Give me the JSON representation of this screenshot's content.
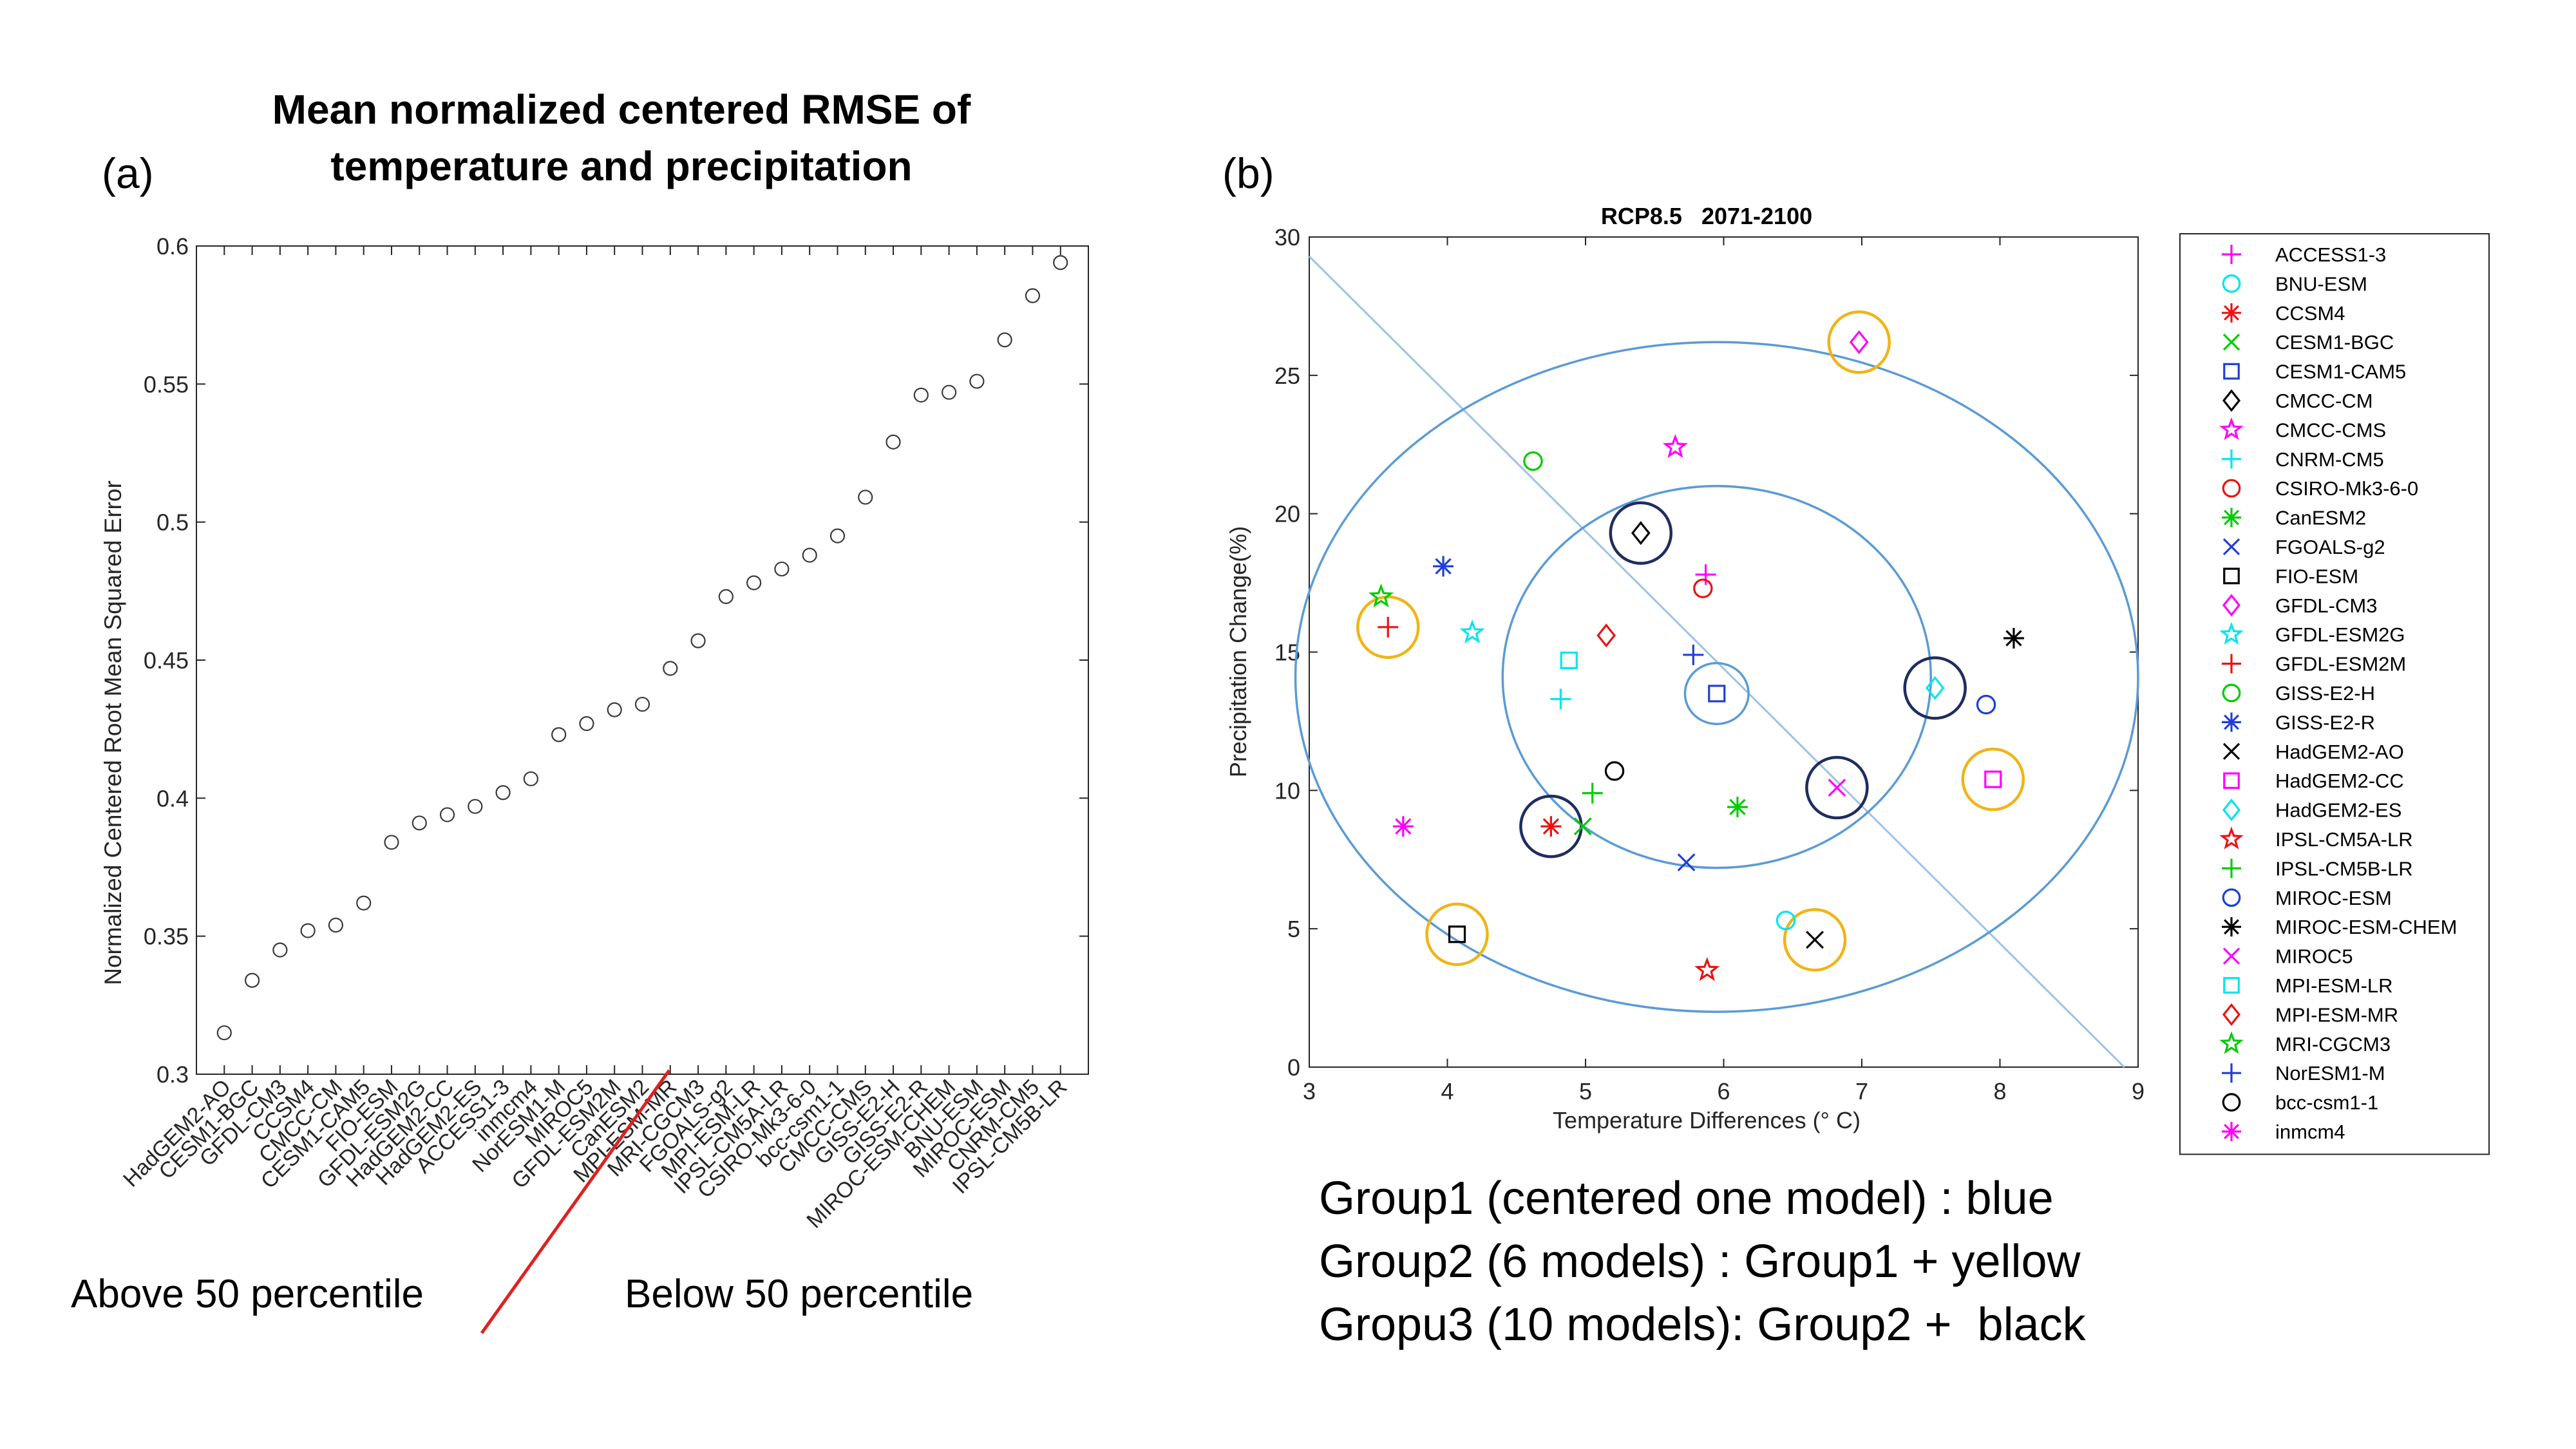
{
  "colors": {
    "axis": "#262626",
    "fit_line": "#9dc3e6",
    "circle": "#5b9bd5",
    "group1": "#5b9bd5",
    "group2": "#f0b416",
    "group3": "#1f2d5e",
    "percentile_line": "#e02020"
  },
  "chart_data": [
    {
      "type": "scatter",
      "panel_label": "(a)",
      "title_line1": "Mean normalized centered RMSE of",
      "title_line2": "temperature and precipitation",
      "xlabel": "",
      "ylabel": "Normalized Centered Root Mean Squared Error",
      "ylim": [
        0.3,
        0.6
      ],
      "yticks": [
        0.3,
        0.35,
        0.4,
        0.45,
        0.5,
        0.55,
        0.6
      ],
      "ytick_labels": [
        "0.3",
        "0.35",
        "0.4",
        "0.45",
        "0.5",
        "0.55",
        "0.6"
      ],
      "grid": false,
      "categories": [
        "HadGEM2-AO",
        "CESM1-BGC",
        "GFDL-CM3",
        "CCSM4",
        "CMCC-CM",
        "CESM1-CAM5",
        "FIO-ESM",
        "GFDL-ESM2G",
        "HadGEM2-CC",
        "HadGEM2-ES",
        "ACCESS1-3",
        "inmcm4",
        "NorESM1-M",
        "MIROC5",
        "GFDL-ESM2M",
        "CanESM2",
        "MPI-ESM-MR",
        "MRI-CGCM3",
        "FGOALS-g2",
        "MPI-ESM-LR",
        "IPSL-CM5A-LR",
        "CSIRO-Mk3-6-0",
        "bcc-csm1-1",
        "CMCC-CMS",
        "GISS-E2-H",
        "GISS-E2-R",
        "MIROC-ESM-CHEM",
        "BNU-ESM",
        "MIROC-ESM",
        "CNRM-CM5",
        "IPSL-CM5B-LR"
      ],
      "values": [
        0.315,
        0.334,
        0.345,
        0.352,
        0.354,
        0.362,
        0.384,
        0.391,
        0.394,
        0.397,
        0.402,
        0.407,
        0.423,
        0.427,
        0.432,
        0.434,
        0.447,
        0.457,
        0.473,
        0.478,
        0.483,
        0.488,
        0.495,
        0.509,
        0.529,
        0.546,
        0.547,
        0.551,
        0.566,
        0.582,
        0.594
      ],
      "divider_after_index": 15,
      "left_annotation": "Above 50 percentile",
      "right_annotation": "Below 50 percentile"
    },
    {
      "type": "scatter",
      "panel_label": "(b)",
      "title": "RCP8.5   2071-2100",
      "xlabel": "Temperature Differences (° C)",
      "ylabel": "Precipitation Change(%)",
      "xlim": [
        3,
        9
      ],
      "ylim": [
        0,
        30
      ],
      "xticks": [
        3,
        4,
        5,
        6,
        7,
        8,
        9
      ],
      "yticks": [
        0,
        5,
        10,
        15,
        20,
        25,
        30
      ],
      "xtick_labels": [
        "3",
        "4",
        "5",
        "6",
        "7",
        "8",
        "9"
      ],
      "ytick_labels": [
        "0",
        "5",
        "10",
        "15",
        "20",
        "25",
        "30"
      ],
      "grid": false,
      "legend_position": "right-outside",
      "fit_line": [
        {
          "x": 3.0,
          "y": 29.3
        },
        {
          "x": 8.9,
          "y": 0.0
        }
      ],
      "circles": [
        {
          "cx": 5.95,
          "cy": 14.1,
          "rx": 3.05,
          "ry": 12.1
        },
        {
          "cx": 5.95,
          "cy": 14.1,
          "rx": 1.55,
          "ry": 6.9
        },
        {
          "cx": 5.95,
          "cy": 13.5,
          "rx": 0.23,
          "ry": 1.1
        }
      ],
      "series": [
        {
          "name": "ACCESS1-3",
          "marker": "plus",
          "color": "#ff00ff",
          "x": 5.87,
          "y": 17.8
        },
        {
          "name": "BNU-ESM",
          "marker": "circle",
          "color": "#00e5ee",
          "x": 6.45,
          "y": 5.3
        },
        {
          "name": "CCSM4",
          "marker": "asterisk",
          "color": "#ee1111",
          "x": 4.75,
          "y": 8.7
        },
        {
          "name": "CESM1-BGC",
          "marker": "x",
          "color": "#00cc00",
          "x": 4.98,
          "y": 8.7
        },
        {
          "name": "CESM1-CAM5",
          "marker": "square",
          "color": "#1f3fd6",
          "x": 5.95,
          "y": 13.5
        },
        {
          "name": "CMCC-CM",
          "marker": "diamond",
          "color": "#000000",
          "x": 5.4,
          "y": 19.3
        },
        {
          "name": "CMCC-CMS",
          "marker": "star",
          "color": "#ff00ff",
          "x": 5.65,
          "y": 22.4
        },
        {
          "name": "CNRM-CM5",
          "marker": "plus",
          "color": "#00e5ee",
          "x": 4.82,
          "y": 13.3
        },
        {
          "name": "CSIRO-Mk3-6-0",
          "marker": "circle",
          "color": "#ee1111",
          "x": 5.85,
          "y": 17.3
        },
        {
          "name": "CanESM2",
          "marker": "asterisk",
          "color": "#00cc00",
          "x": 6.1,
          "y": 9.4
        },
        {
          "name": "FGOALS-g2",
          "marker": "x",
          "color": "#1f3fd6",
          "x": 5.73,
          "y": 7.4
        },
        {
          "name": "FIO-ESM",
          "marker": "square",
          "color": "#000000",
          "x": 4.07,
          "y": 4.8
        },
        {
          "name": "GFDL-CM3",
          "marker": "diamond",
          "color": "#ff00ff",
          "x": 6.98,
          "y": 26.2
        },
        {
          "name": "GFDL-ESM2G",
          "marker": "star",
          "color": "#00e5ee",
          "x": 4.18,
          "y": 15.7
        },
        {
          "name": "GFDL-ESM2M",
          "marker": "plus",
          "color": "#ee1111",
          "x": 3.57,
          "y": 15.9
        },
        {
          "name": "GISS-E2-H",
          "marker": "circle",
          "color": "#00cc00",
          "x": 4.62,
          "y": 21.9
        },
        {
          "name": "GISS-E2-R",
          "marker": "asterisk",
          "color": "#1f3fd6",
          "x": 3.97,
          "y": 18.1
        },
        {
          "name": "HadGEM2-AO",
          "marker": "x",
          "color": "#000000",
          "x": 6.66,
          "y": 4.6
        },
        {
          "name": "HadGEM2-CC",
          "marker": "square",
          "color": "#ff00ff",
          "x": 7.95,
          "y": 10.4
        },
        {
          "name": "HadGEM2-ES",
          "marker": "diamond",
          "color": "#00e5ee",
          "x": 7.53,
          "y": 13.7
        },
        {
          "name": "IPSL-CM5A-LR",
          "marker": "star",
          "color": "#ee1111",
          "x": 5.88,
          "y": 3.5
        },
        {
          "name": "IPSL-CM5B-LR",
          "marker": "plus",
          "color": "#00cc00",
          "x": 5.05,
          "y": 9.9
        },
        {
          "name": "MIROC-ESM",
          "marker": "circle",
          "color": "#1f3fd6",
          "x": 7.9,
          "y": 13.1
        },
        {
          "name": "MIROC-ESM-CHEM",
          "marker": "asterisk",
          "color": "#000000",
          "x": 8.1,
          "y": 15.5
        },
        {
          "name": "MIROC5",
          "marker": "x",
          "color": "#ff00ff",
          "x": 6.82,
          "y": 10.1
        },
        {
          "name": "MPI-ESM-LR",
          "marker": "square",
          "color": "#00e5ee",
          "x": 4.88,
          "y": 14.7
        },
        {
          "name": "MPI-ESM-MR",
          "marker": "diamond",
          "color": "#ee1111",
          "x": 5.15,
          "y": 15.6
        },
        {
          "name": "MRI-CGCM3",
          "marker": "star",
          "color": "#00cc00",
          "x": 3.52,
          "y": 17.0
        },
        {
          "name": "NorESM1-M",
          "marker": "plus",
          "color": "#1f3fd6",
          "x": 5.78,
          "y": 14.9
        },
        {
          "name": "bcc-csm1-1",
          "marker": "circle",
          "color": "#000000",
          "x": 5.21,
          "y": 10.7
        },
        {
          "name": "inmcm4",
          "marker": "asterisk",
          "color": "#ff00ff",
          "x": 3.68,
          "y": 8.7
        }
      ],
      "highlights": [
        {
          "model": "CESM1-CAM5",
          "group": "group1"
        },
        {
          "model": "GFDL-CM3",
          "group": "group2"
        },
        {
          "model": "GFDL-ESM2M",
          "group": "group2"
        },
        {
          "model": "FIO-ESM",
          "group": "group2"
        },
        {
          "model": "HadGEM2-AO",
          "group": "group2"
        },
        {
          "model": "HadGEM2-CC",
          "group": "group2"
        },
        {
          "model": "CMCC-CM",
          "group": "group3"
        },
        {
          "model": "CCSM4",
          "group": "group3"
        },
        {
          "model": "MIROC5",
          "group": "group3"
        },
        {
          "model": "HadGEM2-ES",
          "group": "group3"
        }
      ]
    }
  ],
  "group_notes": [
    "Group1 (centered one model) : blue",
    "Group2 (6 models) : Group1 + yellow",
    "Gropu3 (10 models): Group2 +  black"
  ]
}
